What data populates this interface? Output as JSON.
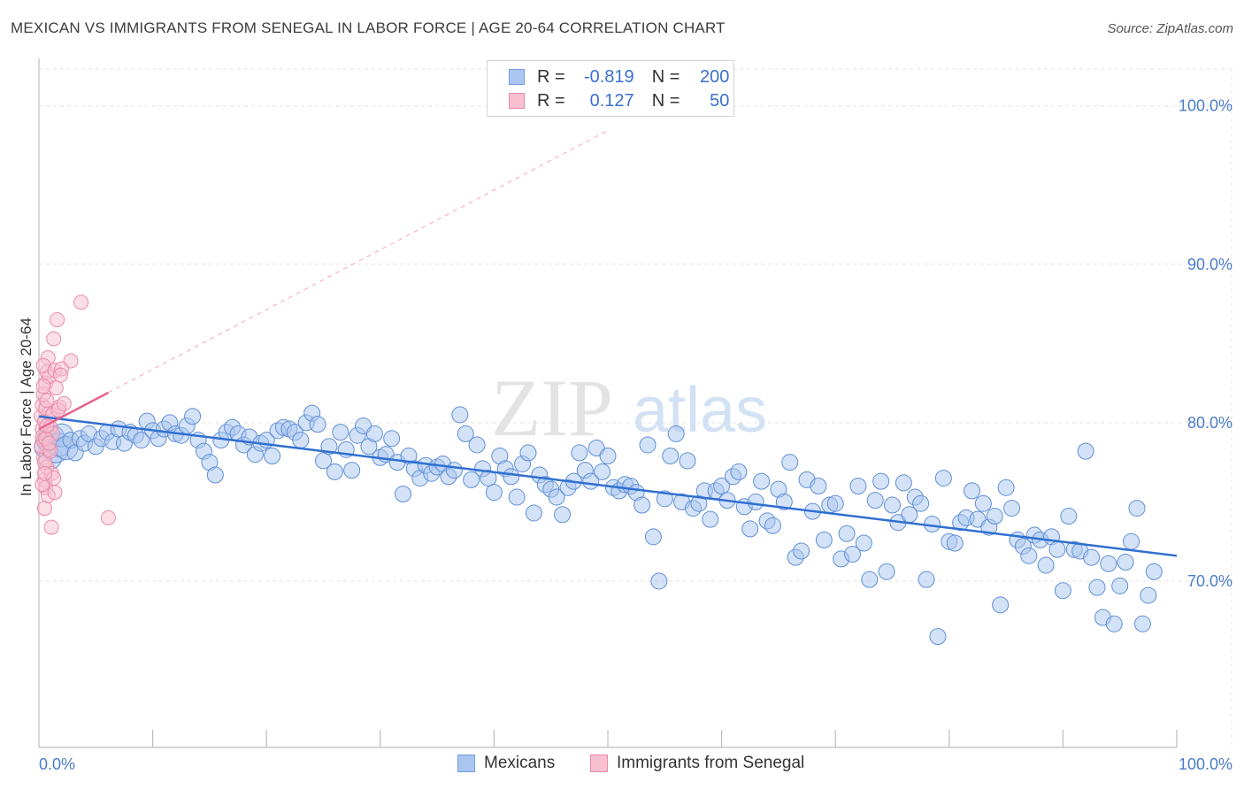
{
  "title": "MEXICAN VS IMMIGRANTS FROM SENEGAL IN LABOR FORCE | AGE 20-64 CORRELATION CHART",
  "source": "Source: ZipAtlas.com",
  "watermark": {
    "zip": "ZIP",
    "atlas": "atlas"
  },
  "legend": {
    "rows": [
      {
        "r_label": "R =",
        "r_value": "-0.819",
        "n_label": "N =",
        "n_value": "200",
        "color": "#a9c5f0",
        "border": "#6f9ee0"
      },
      {
        "r_label": "R =",
        "r_value": "0.127",
        "n_label": "N =",
        "n_value": "50",
        "color": "#f7bfd0",
        "border": "#e98aa8"
      }
    ]
  },
  "bottom_legend": {
    "mexicans": "Mexicans",
    "senegal": "Immigrants from Senegal"
  },
  "chart_data": {
    "type": "scatter",
    "title": "MEXICAN VS IMMIGRANTS FROM SENEGAL IN LABOR FORCE | AGE 20-64 CORRELATION CHART",
    "xlabel": "",
    "ylabel": "In Labor Force | Age 20-64",
    "xlim": [
      0,
      100
    ],
    "ylim": [
      59.5,
      103
    ],
    "y_ticks": [
      {
        "value": 70,
        "label": "70.0%"
      },
      {
        "value": 80,
        "label": "80.0%"
      },
      {
        "value": 90,
        "label": "90.0%"
      },
      {
        "value": 100,
        "label": "100.0%"
      }
    ],
    "x_tick_labels": {
      "left": "0.0%",
      "right": "100.0%"
    },
    "grid": true,
    "legend_placement": "top-center",
    "colors": {
      "mexicans_fill": "#a9c5f0",
      "mexicans_stroke": "#5f8fd6",
      "mexicans_line": "#2f6fd1",
      "senegal_fill": "#f7bfd0",
      "senegal_stroke": "#e98aa8",
      "senegal_line": "#e5628f"
    },
    "series": [
      {
        "name": "Mexicans",
        "trend": {
          "x": [
            0,
            100
          ],
          "y": [
            80.4,
            71.6
          ]
        },
        "points": [
          [
            0.6,
            78.5
          ],
          [
            0.8,
            78.9
          ],
          [
            1.0,
            77.8
          ],
          [
            1.2,
            79.1
          ],
          [
            1.5,
            78.2
          ],
          [
            1.8,
            78.6
          ],
          [
            2.0,
            79.2
          ],
          [
            2.4,
            78.4
          ],
          [
            2.8,
            78.9
          ],
          [
            3.2,
            78.1
          ],
          [
            3.6,
            79.0
          ],
          [
            4.0,
            78.7
          ],
          [
            4.4,
            79.3
          ],
          [
            5.0,
            78.5
          ],
          [
            5.5,
            79.0
          ],
          [
            6.0,
            79.4
          ],
          [
            6.5,
            78.8
          ],
          [
            7.0,
            79.6
          ],
          [
            7.5,
            78.7
          ],
          [
            8.0,
            79.4
          ],
          [
            8.5,
            79.2
          ],
          [
            9.0,
            78.9
          ],
          [
            9.5,
            80.1
          ],
          [
            10.0,
            79.5
          ],
          [
            10.5,
            79.0
          ],
          [
            11.0,
            79.6
          ],
          [
            11.5,
            80.0
          ],
          [
            12.0,
            79.3
          ],
          [
            12.5,
            79.2
          ],
          [
            13.0,
            79.8
          ],
          [
            13.5,
            80.4
          ],
          [
            14.0,
            78.9
          ],
          [
            14.5,
            78.2
          ],
          [
            15.0,
            77.5
          ],
          [
            15.5,
            76.7
          ],
          [
            16.0,
            78.9
          ],
          [
            16.5,
            79.4
          ],
          [
            17.0,
            79.7
          ],
          [
            17.5,
            79.3
          ],
          [
            18.0,
            78.6
          ],
          [
            18.5,
            79.1
          ],
          [
            19.0,
            78.0
          ],
          [
            19.5,
            78.7
          ],
          [
            20.0,
            78.9
          ],
          [
            20.5,
            77.9
          ],
          [
            21.0,
            79.5
          ],
          [
            21.5,
            79.7
          ],
          [
            22.0,
            79.6
          ],
          [
            22.5,
            79.4
          ],
          [
            23.0,
            78.9
          ],
          [
            23.5,
            80.0
          ],
          [
            24.0,
            80.6
          ],
          [
            24.5,
            79.9
          ],
          [
            25.0,
            77.6
          ],
          [
            25.5,
            78.5
          ],
          [
            26.0,
            76.9
          ],
          [
            26.5,
            79.4
          ],
          [
            27.0,
            78.3
          ],
          [
            27.5,
            77.0
          ],
          [
            28.0,
            79.2
          ],
          [
            28.5,
            79.8
          ],
          [
            29.0,
            78.5
          ],
          [
            29.5,
            79.3
          ],
          [
            30.0,
            77.8
          ],
          [
            30.5,
            78.0
          ],
          [
            31.0,
            79.0
          ],
          [
            31.5,
            77.5
          ],
          [
            32.0,
            75.5
          ],
          [
            32.5,
            77.9
          ],
          [
            33.0,
            77.1
          ],
          [
            33.5,
            76.5
          ],
          [
            34.0,
            77.3
          ],
          [
            34.5,
            76.8
          ],
          [
            35.0,
            77.2
          ],
          [
            35.5,
            77.4
          ],
          [
            36.0,
            76.6
          ],
          [
            36.5,
            77.0
          ],
          [
            37.0,
            80.5
          ],
          [
            37.5,
            79.3
          ],
          [
            38.0,
            76.4
          ],
          [
            38.5,
            78.6
          ],
          [
            39.0,
            77.1
          ],
          [
            39.5,
            76.5
          ],
          [
            40.0,
            75.6
          ],
          [
            40.5,
            77.9
          ],
          [
            41.0,
            77.1
          ],
          [
            41.5,
            76.6
          ],
          [
            42.0,
            75.3
          ],
          [
            42.5,
            77.4
          ],
          [
            43.0,
            78.1
          ],
          [
            43.5,
            74.3
          ],
          [
            44.0,
            76.7
          ],
          [
            44.5,
            76.1
          ],
          [
            45.0,
            75.8
          ],
          [
            45.5,
            75.3
          ],
          [
            46.0,
            74.2
          ],
          [
            46.5,
            75.9
          ],
          [
            47.0,
            76.3
          ],
          [
            47.5,
            78.1
          ],
          [
            48.0,
            77.0
          ],
          [
            48.5,
            76.3
          ],
          [
            49.0,
            78.4
          ],
          [
            49.5,
            76.9
          ],
          [
            50.0,
            77.9
          ],
          [
            50.5,
            75.9
          ],
          [
            51.0,
            75.7
          ],
          [
            51.5,
            76.1
          ],
          [
            52.0,
            76.0
          ],
          [
            52.5,
            75.6
          ],
          [
            53.0,
            74.8
          ],
          [
            53.5,
            78.6
          ],
          [
            54.0,
            72.8
          ],
          [
            54.5,
            70.0
          ],
          [
            55.0,
            75.2
          ],
          [
            55.5,
            77.9
          ],
          [
            56.0,
            79.3
          ],
          [
            56.5,
            75.0
          ],
          [
            57.0,
            77.6
          ],
          [
            57.5,
            74.6
          ],
          [
            58.0,
            74.9
          ],
          [
            58.5,
            75.7
          ],
          [
            59.0,
            73.9
          ],
          [
            59.5,
            75.7
          ],
          [
            60.0,
            76.0
          ],
          [
            60.5,
            75.1
          ],
          [
            61.0,
            76.6
          ],
          [
            61.5,
            76.9
          ],
          [
            62.0,
            74.7
          ],
          [
            62.5,
            73.3
          ],
          [
            63.0,
            75.0
          ],
          [
            63.5,
            76.3
          ],
          [
            64.0,
            73.8
          ],
          [
            64.5,
            73.5
          ],
          [
            65.0,
            75.8
          ],
          [
            65.5,
            75.0
          ],
          [
            66.0,
            77.5
          ],
          [
            66.5,
            71.5
          ],
          [
            67.0,
            71.9
          ],
          [
            67.5,
            76.4
          ],
          [
            68.0,
            74.4
          ],
          [
            68.5,
            76.0
          ],
          [
            69.0,
            72.6
          ],
          [
            69.5,
            74.8
          ],
          [
            70.0,
            74.9
          ],
          [
            70.5,
            71.4
          ],
          [
            71.0,
            73.0
          ],
          [
            71.5,
            71.7
          ],
          [
            72.0,
            76.0
          ],
          [
            72.5,
            72.4
          ],
          [
            73.0,
            70.1
          ],
          [
            73.5,
            75.1
          ],
          [
            74.0,
            76.3
          ],
          [
            74.5,
            70.6
          ],
          [
            75.0,
            74.8
          ],
          [
            75.5,
            73.7
          ],
          [
            76.0,
            76.2
          ],
          [
            76.5,
            74.2
          ],
          [
            77.0,
            75.3
          ],
          [
            77.5,
            74.9
          ],
          [
            78.0,
            70.1
          ],
          [
            78.5,
            73.6
          ],
          [
            79.0,
            66.5
          ],
          [
            79.5,
            76.5
          ],
          [
            80.0,
            72.5
          ],
          [
            80.5,
            72.4
          ],
          [
            81.0,
            73.7
          ],
          [
            81.5,
            74.0
          ],
          [
            82.0,
            75.7
          ],
          [
            82.5,
            73.9
          ],
          [
            83.0,
            74.9
          ],
          [
            83.5,
            73.4
          ],
          [
            84.0,
            74.1
          ],
          [
            84.5,
            68.5
          ],
          [
            85.0,
            75.9
          ],
          [
            85.5,
            74.6
          ],
          [
            86.0,
            72.6
          ],
          [
            86.5,
            72.2
          ],
          [
            87.0,
            71.6
          ],
          [
            87.5,
            72.9
          ],
          [
            88.0,
            72.6
          ],
          [
            88.5,
            71.0
          ],
          [
            89.0,
            72.8
          ],
          [
            89.5,
            72.0
          ],
          [
            90.0,
            69.4
          ],
          [
            90.5,
            74.1
          ],
          [
            91.0,
            72.0
          ],
          [
            91.5,
            71.9
          ],
          [
            92.0,
            78.2
          ],
          [
            92.5,
            71.5
          ],
          [
            93.0,
            69.6
          ],
          [
            93.5,
            67.7
          ],
          [
            94.0,
            71.1
          ],
          [
            94.5,
            67.3
          ],
          [
            95.0,
            69.7
          ],
          [
            95.5,
            71.2
          ],
          [
            96.0,
            72.5
          ],
          [
            96.5,
            74.6
          ],
          [
            97.0,
            67.3
          ],
          [
            97.5,
            69.1
          ],
          [
            98.0,
            70.6
          ]
        ]
      },
      {
        "name": "Immigrants from Senegal",
        "trend": {
          "x": [
            0,
            6.1
          ],
          "y": [
            79.6,
            81.9
          ]
        },
        "points": [
          [
            0.2,
            80.4
          ],
          [
            0.3,
            79.6
          ],
          [
            0.4,
            78.9
          ],
          [
            0.5,
            80.1
          ],
          [
            0.3,
            81.1
          ],
          [
            0.6,
            82.5
          ],
          [
            0.4,
            77.8
          ],
          [
            0.7,
            83.2
          ],
          [
            0.5,
            76.4
          ],
          [
            0.8,
            78.3
          ],
          [
            0.3,
            79.1
          ],
          [
            0.6,
            75.9
          ],
          [
            0.9,
            80.6
          ],
          [
            0.4,
            81.8
          ],
          [
            0.7,
            77.2
          ],
          [
            0.5,
            74.6
          ],
          [
            0.8,
            84.1
          ],
          [
            1.0,
            79.7
          ],
          [
            0.2,
            78.5
          ],
          [
            0.6,
            80.9
          ],
          [
            1.1,
            76.8
          ],
          [
            0.9,
            82.9
          ],
          [
            1.3,
            85.3
          ],
          [
            0.4,
            83.6
          ],
          [
            0.7,
            81.4
          ],
          [
            1.2,
            79.3
          ],
          [
            0.5,
            77.5
          ],
          [
            1.0,
            78.2
          ],
          [
            1.4,
            83.3
          ],
          [
            0.8,
            75.4
          ],
          [
            1.6,
            86.5
          ],
          [
            1.2,
            80.5
          ],
          [
            0.3,
            76.1
          ],
          [
            1.5,
            82.2
          ],
          [
            0.6,
            79.0
          ],
          [
            1.8,
            81.0
          ],
          [
            1.1,
            73.4
          ],
          [
            1.7,
            80.8
          ],
          [
            0.9,
            78.7
          ],
          [
            2.0,
            83.4
          ],
          [
            0.4,
            82.3
          ],
          [
            1.3,
            76.5
          ],
          [
            2.2,
            81.2
          ],
          [
            0.7,
            79.8
          ],
          [
            1.9,
            83.0
          ],
          [
            0.5,
            76.8
          ],
          [
            1.4,
            75.6
          ],
          [
            2.8,
            83.9
          ],
          [
            3.7,
            87.6
          ],
          [
            6.1,
            74.0
          ]
        ]
      }
    ]
  }
}
